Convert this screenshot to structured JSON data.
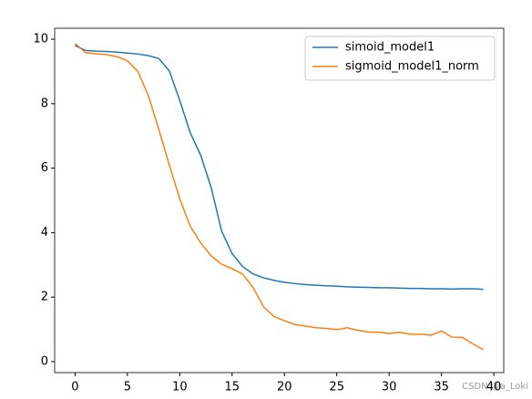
{
  "chart_data": {
    "type": "line",
    "x": [
      0,
      1,
      2,
      3,
      4,
      5,
      6,
      7,
      8,
      9,
      10,
      11,
      12,
      13,
      14,
      15,
      16,
      17,
      18,
      19,
      20,
      21,
      22,
      23,
      24,
      25,
      26,
      27,
      28,
      29,
      30,
      31,
      32,
      33,
      34,
      35,
      36,
      37,
      38,
      39
    ],
    "series": [
      {
        "name": "simoid_model1",
        "color": "#1f77b4",
        "values": [
          9.8,
          9.65,
          9.63,
          9.62,
          9.6,
          9.57,
          9.54,
          9.49,
          9.4,
          9.02,
          8.1,
          7.1,
          6.4,
          5.4,
          4.05,
          3.35,
          2.95,
          2.72,
          2.6,
          2.52,
          2.46,
          2.42,
          2.39,
          2.37,
          2.35,
          2.34,
          2.32,
          2.31,
          2.3,
          2.29,
          2.29,
          2.28,
          2.27,
          2.27,
          2.26,
          2.26,
          2.25,
          2.26,
          2.26,
          2.24
        ]
      },
      {
        "name": "sigmoid_model1_norm",
        "color": "#ff7f0e",
        "values": [
          9.87,
          9.58,
          9.55,
          9.52,
          9.46,
          9.33,
          9.0,
          8.25,
          7.2,
          6.1,
          5.05,
          4.2,
          3.68,
          3.28,
          3.02,
          2.88,
          2.72,
          2.3,
          1.7,
          1.4,
          1.27,
          1.15,
          1.1,
          1.05,
          1.03,
          0.99,
          1.05,
          0.97,
          0.92,
          0.91,
          0.87,
          0.91,
          0.85,
          0.85,
          0.82,
          0.95,
          0.76,
          0.75,
          0.55,
          0.37
        ]
      }
    ],
    "xlim": [
      -1.95,
      40.95
    ],
    "xticks": [
      0,
      5,
      10,
      15,
      20,
      25,
      30,
      35,
      40
    ],
    "ylim": [
      -0.34,
      10.34
    ],
    "yticks": [
      0,
      2,
      4,
      6,
      8,
      10
    ],
    "legend": "upper right",
    "watermark": "CSDN @a_Loki"
  }
}
